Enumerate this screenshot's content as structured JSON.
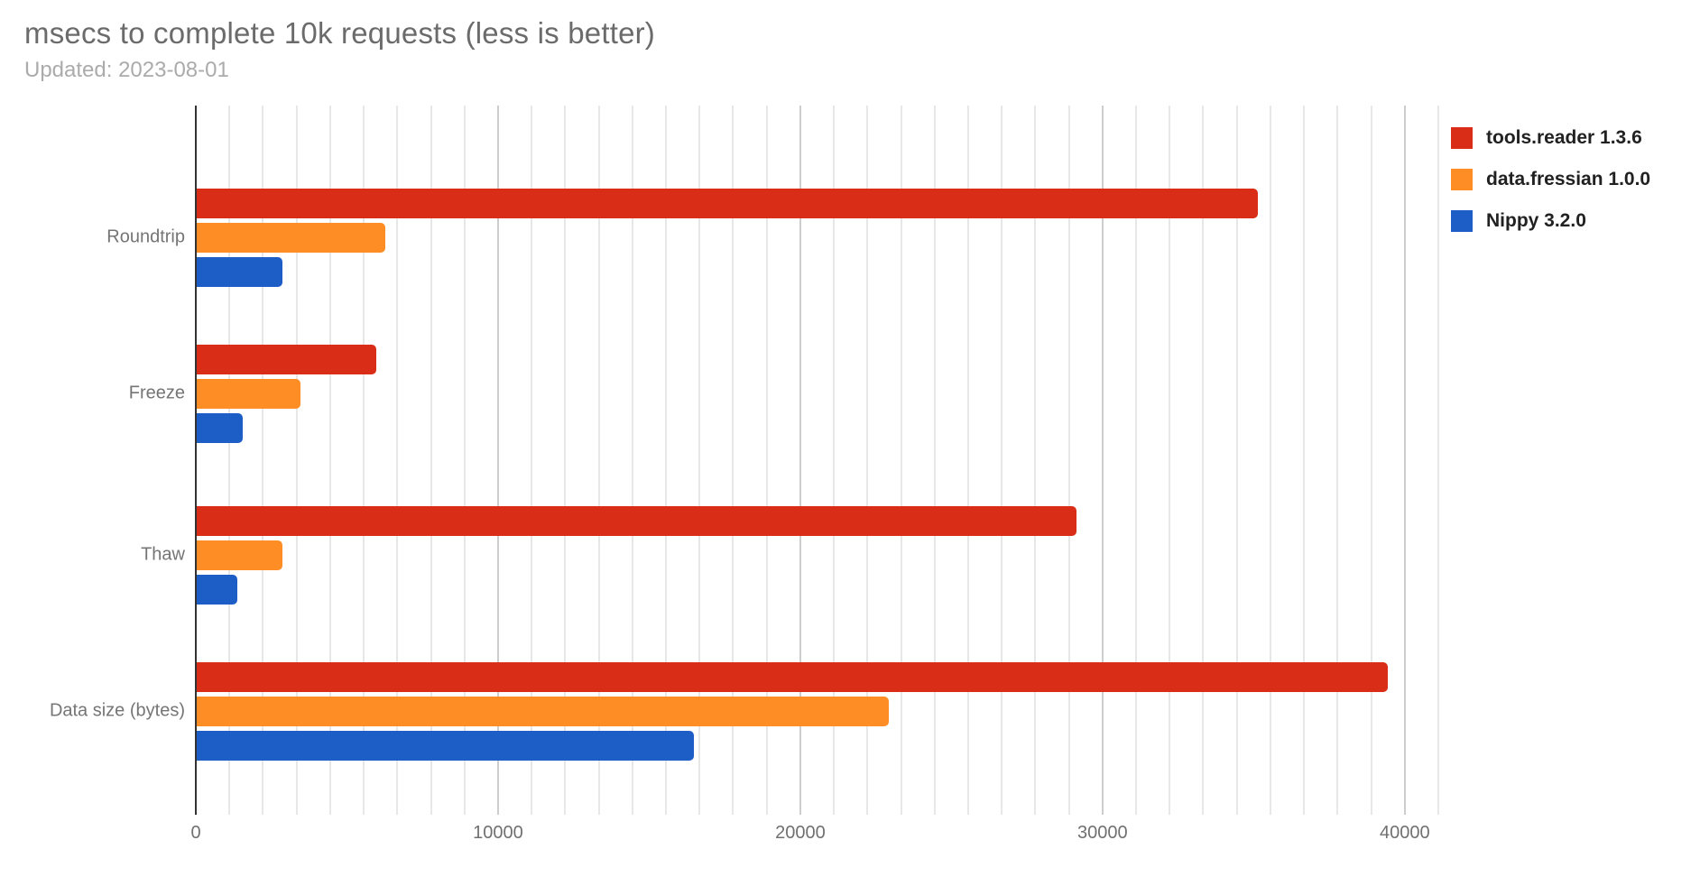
{
  "header": {
    "title": "msecs to complete 10k requests (less is better)",
    "subtitle": "Updated: 2023-08-01"
  },
  "chart_data": {
    "type": "bar",
    "orientation": "horizontal",
    "title": "msecs to complete 10k requests (less is better)",
    "subtitle": "Updated: 2023-08-01",
    "categories": [
      "Roundtrip",
      "Freeze",
      "Thaw",
      "Data size (bytes)"
    ],
    "series": [
      {
        "name": "tools.reader 1.3.6",
        "color": "#d92d18",
        "values": [
          35100,
          5950,
          29100,
          39400
        ]
      },
      {
        "name": "data.fressian 1.0.0",
        "color": "#fe8d25",
        "values": [
          6240,
          3440,
          2840,
          22890
        ]
      },
      {
        "name": "Nippy 3.2.0",
        "color": "#1c5dc6",
        "values": [
          2830,
          1530,
          1340,
          16460
        ]
      }
    ],
    "x_axis": {
      "ticks": [
        0,
        10000,
        20000,
        30000,
        40000
      ],
      "tick_labels": [
        "0",
        "10000",
        "20000",
        "30000",
        "40000"
      ],
      "min": 0,
      "max": 41111,
      "minor_gridline_step": 1111.1
    },
    "ylabel": "",
    "xlabel": "",
    "legend_position": "right",
    "gridlines": "vertical-only"
  },
  "colors": {
    "axis_line": "#333333",
    "minor_gridline": "#e7e7e7",
    "major_gridline": "#cdcdcd",
    "title_text": "#6b6b6b",
    "subtitle_text": "#ababab",
    "label_text": "#757575"
  }
}
